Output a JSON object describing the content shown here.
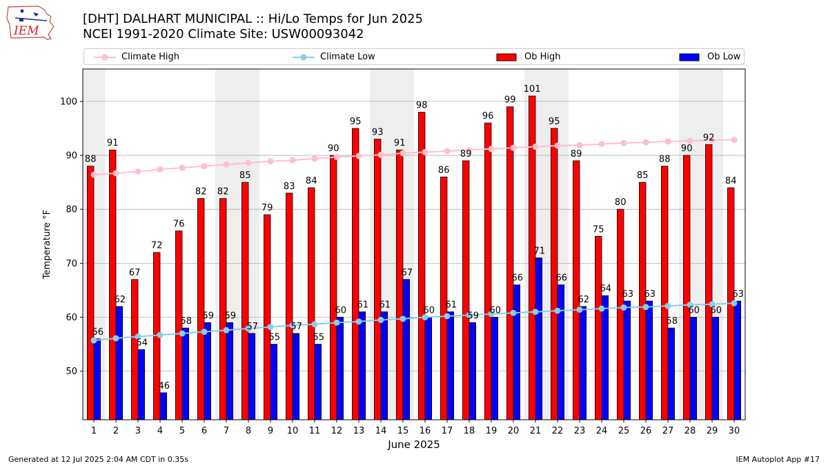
{
  "header": {
    "title_line1": "[DHT] DALHART MUNICIPAL :: Hi/Lo Temps for Jun 2025",
    "title_line2": "NCEI 1991-2020 Climate Site: USW00093042"
  },
  "logo": {
    "text": "IEM",
    "color": "#cc2222"
  },
  "legend": {
    "climate_high": "Climate High",
    "climate_low": "Climate Low",
    "ob_high": "Ob High",
    "ob_low": "Ob Low"
  },
  "footer": {
    "left": "Generated at 12 Jul 2025 2:04 AM CDT in 0.35s",
    "right": "IEM Autoplot App #17"
  },
  "colors": {
    "ob_high": "#ff0000",
    "ob_low": "#0000ff",
    "climate_high": "#ffc0cb",
    "climate_low": "#87ceeb",
    "weekend_shade": "#eeeeee",
    "grid": "#b0b0b0"
  },
  "chart_data": {
    "type": "bar",
    "xlabel": "June 2025",
    "ylabel": "Temperature °F",
    "ylim": [
      41,
      106
    ],
    "yticks": [
      50,
      60,
      70,
      80,
      90,
      100
    ],
    "grid": "horizontal",
    "legend_position": "top",
    "categories": [
      1,
      2,
      3,
      4,
      5,
      6,
      7,
      8,
      9,
      10,
      11,
      12,
      13,
      14,
      15,
      16,
      17,
      18,
      19,
      20,
      21,
      22,
      23,
      24,
      25,
      26,
      27,
      28,
      29,
      30
    ],
    "shaded_days": [
      1,
      7,
      8,
      14,
      15,
      21,
      22,
      28,
      29
    ],
    "series": [
      {
        "name": "Ob High",
        "kind": "bar",
        "values": [
          88,
          91,
          67,
          72,
          76,
          82,
          82,
          85,
          79,
          83,
          84,
          90,
          95,
          93,
          91,
          98,
          86,
          89,
          96,
          99,
          101,
          95,
          89,
          75,
          80,
          85,
          88,
          90,
          92,
          84
        ]
      },
      {
        "name": "Ob Low",
        "kind": "bar",
        "values": [
          56,
          62,
          54,
          46,
          58,
          59,
          59,
          57,
          55,
          57,
          55,
          60,
          61,
          61,
          67,
          60,
          61,
          59,
          60,
          66,
          71,
          66,
          62,
          64,
          63,
          63,
          58,
          60,
          60,
          63
        ]
      },
      {
        "name": "Climate High",
        "kind": "line",
        "values": [
          86.4,
          86.7,
          87.0,
          87.4,
          87.7,
          88.0,
          88.3,
          88.6,
          88.9,
          89.1,
          89.4,
          89.7,
          89.9,
          90.1,
          90.4,
          90.6,
          90.8,
          91.0,
          91.2,
          91.4,
          91.6,
          91.8,
          91.9,
          92.1,
          92.3,
          92.4,
          92.6,
          92.7,
          92.8,
          92.9
        ]
      },
      {
        "name": "Climate Low",
        "kind": "line",
        "values": [
          55.7,
          56.1,
          56.4,
          56.7,
          57.0,
          57.3,
          57.6,
          57.9,
          58.2,
          58.5,
          58.7,
          59.0,
          59.2,
          59.5,
          59.7,
          60.0,
          60.2,
          60.4,
          60.6,
          60.8,
          61.0,
          61.2,
          61.4,
          61.6,
          61.8,
          61.9,
          62.1,
          62.3,
          62.4,
          62.6
        ]
      }
    ]
  }
}
